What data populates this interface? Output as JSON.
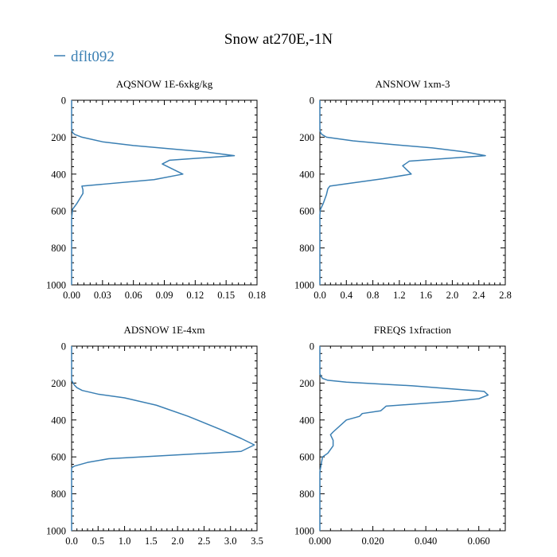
{
  "figure": {
    "title": "Snow at270E,-1N",
    "legend_label": "dflt092",
    "line_color": "#3a7fb3"
  },
  "chart_data": [
    {
      "type": "line",
      "title": "AQSNOW  1E-6xkg/kg",
      "xlim": [
        0,
        0.18
      ],
      "ylim": [
        1000,
        0
      ],
      "xticks": [
        0,
        0.03,
        0.06,
        0.09,
        0.12,
        0.15,
        0.18
      ],
      "xtick_labels": [
        "0.00",
        "0.03",
        "0.06",
        "0.09",
        "0.12",
        "0.15",
        "0.18"
      ],
      "yticks": [
        0,
        200,
        400,
        600,
        800,
        1000
      ],
      "ytick_labels": [
        "0",
        "200",
        "400",
        "600",
        "800",
        "1000"
      ],
      "series": [
        {
          "name": "dflt092",
          "x": [
            0,
            0,
            0.001,
            0.003,
            0.01,
            0.03,
            0.06,
            0.1,
            0.13,
            0.158,
            0.095,
            0.088,
            0.108,
            0.08,
            0.03,
            0.01,
            0.011,
            0.011,
            0.005,
            0.001,
            0,
            0,
            0
          ],
          "y": [
            0,
            160,
            175,
            185,
            200,
            225,
            245,
            265,
            280,
            300,
            325,
            345,
            400,
            430,
            455,
            465,
            485,
            505,
            560,
            590,
            640,
            700,
            1000
          ]
        }
      ]
    },
    {
      "type": "line",
      "title": "ANSNOW  1xm-3",
      "xlim": [
        0,
        2.8
      ],
      "ylim": [
        1000,
        0
      ],
      "xticks": [
        0,
        0.4,
        0.8,
        1.2,
        1.6,
        2.0,
        2.4,
        2.8
      ],
      "xtick_labels": [
        "0.0",
        "0.4",
        "0.8",
        "1.2",
        "1.6",
        "2.0",
        "2.4",
        "2.8"
      ],
      "yticks": [
        0,
        200,
        400,
        600,
        800,
        1000
      ],
      "ytick_labels": [
        "0",
        "200",
        "400",
        "600",
        "800",
        "1000"
      ],
      "series": [
        {
          "name": "dflt092",
          "x": [
            0,
            0,
            0.01,
            0.03,
            0.1,
            0.5,
            1.1,
            1.7,
            2.2,
            2.5,
            1.35,
            1.25,
            1.38,
            0.95,
            0.45,
            0.15,
            0.12,
            0.1,
            0.05,
            0.01,
            0,
            0,
            0
          ],
          "y": [
            0,
            160,
            175,
            185,
            200,
            220,
            240,
            258,
            280,
            300,
            330,
            355,
            400,
            425,
            450,
            465,
            480,
            510,
            560,
            590,
            620,
            700,
            1000
          ]
        }
      ]
    },
    {
      "type": "line",
      "title": "ADSNOW  1E-4xm",
      "xlim": [
        0,
        3.5
      ],
      "ylim": [
        1000,
        0
      ],
      "xticks": [
        0,
        0.5,
        1.0,
        1.5,
        2.0,
        2.5,
        3.0,
        3.5
      ],
      "xtick_labels": [
        "0.0",
        "0.5",
        "1.0",
        "1.5",
        "2.0",
        "2.5",
        "3.0",
        "3.5"
      ],
      "yticks": [
        0,
        200,
        400,
        600,
        800,
        1000
      ],
      "ytick_labels": [
        "0",
        "200",
        "400",
        "600",
        "800",
        "1000"
      ],
      "series": [
        {
          "name": "dflt092",
          "x": [
            0,
            0,
            0.02,
            0.05,
            0.1,
            0.2,
            0.5,
            1.0,
            1.6,
            2.2,
            2.8,
            3.2,
            3.45,
            3.2,
            0.7,
            0.3,
            0.05,
            0,
            0
          ],
          "y": [
            0,
            185,
            195,
            210,
            225,
            240,
            260,
            280,
            320,
            380,
            450,
            500,
            535,
            570,
            610,
            630,
            650,
            660,
            1000
          ]
        }
      ]
    },
    {
      "type": "line",
      "title": "FREQS  1xfraction",
      "xlim": [
        0,
        0.07
      ],
      "ylim": [
        1000,
        0
      ],
      "xticks": [
        0,
        0.02,
        0.04,
        0.06
      ],
      "xtick_labels": [
        "0.000",
        "0.020",
        "0.040",
        "0.060"
      ],
      "yticks": [
        0,
        200,
        400,
        600,
        800,
        1000
      ],
      "ytick_labels": [
        "0",
        "200",
        "400",
        "600",
        "800",
        "1000"
      ],
      "series": [
        {
          "name": "dflt092",
          "x": [
            0,
            0,
            0.0005,
            0.001,
            0.003,
            0.01,
            0.035,
            0.062,
            0.0635,
            0.06,
            0.049,
            0.025,
            0.023,
            0.016,
            0.015,
            0.01,
            0.005,
            0.004,
            0.005,
            0.005,
            0.003,
            0.001,
            0.0005,
            0,
            0
          ],
          "y": [
            0,
            150,
            165,
            175,
            185,
            195,
            215,
            245,
            265,
            285,
            300,
            325,
            350,
            365,
            380,
            400,
            465,
            480,
            510,
            540,
            580,
            600,
            640,
            680,
            1000
          ]
        }
      ]
    }
  ]
}
